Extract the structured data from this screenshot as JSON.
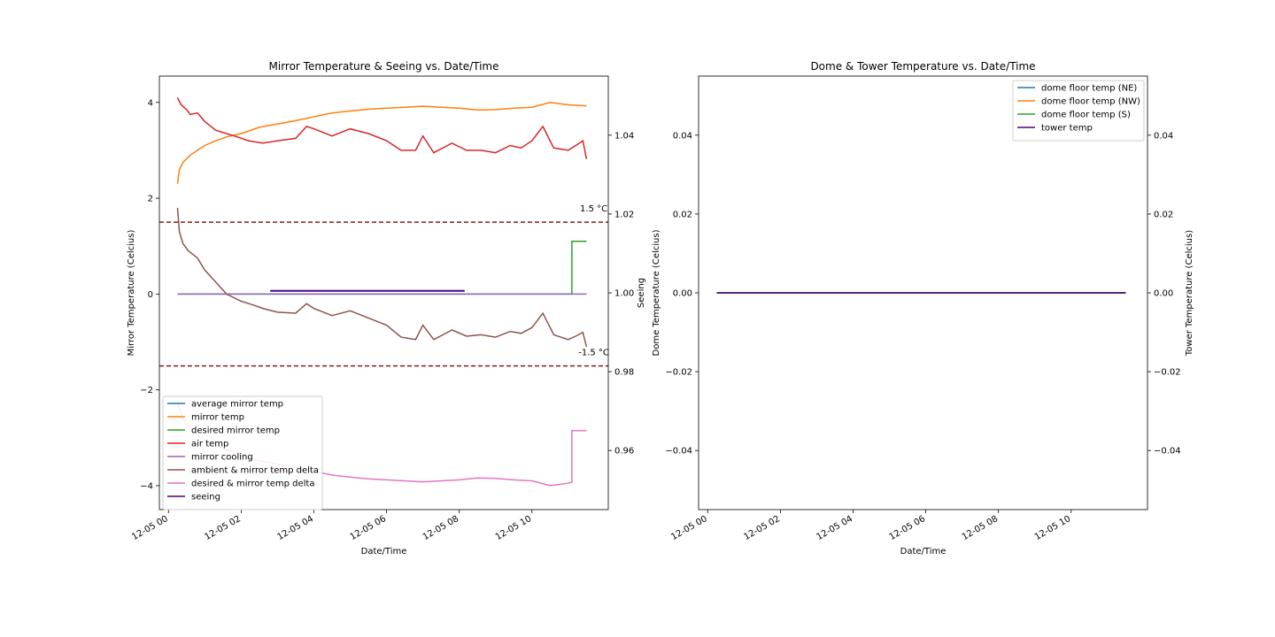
{
  "chart_data": [
    {
      "type": "line",
      "title": "Mirror Temperature & Seeing vs. Date/Time",
      "xlabel": "Date/Time",
      "ylabel": "Mirror Temperature (Celcius)",
      "y2label": "Seeing",
      "xlim": [
        -0.25,
        12.1
      ],
      "ylim": [
        -4.5,
        4.55
      ],
      "y2lim": [
        0.945,
        1.055
      ],
      "x_tick_values": [
        0,
        2,
        4,
        6,
        8,
        10
      ],
      "x_tick_labels": [
        "12-05 00",
        "12-05 02",
        "12-05 04",
        "12-05 06",
        "12-05 08",
        "12-05 10"
      ],
      "y_tick_values": [
        -4,
        -2,
        0,
        2,
        4
      ],
      "y_tick_labels": [
        "−4",
        "−2",
        "0",
        "2",
        "4"
      ],
      "y2_tick_values": [
        0.96,
        0.98,
        1.0,
        1.02,
        1.04
      ],
      "y2_tick_labels": [
        "0.96",
        "0.98",
        "1.00",
        "1.02",
        "1.04"
      ],
      "reference_lines": [
        {
          "y": 1.5,
          "label": "1.5 °C",
          "label_x": 11.7,
          "label_y": 1.8,
          "color": "#8b1a1a"
        },
        {
          "y": -1.5,
          "label": "-1.5 °C",
          "label_x": 11.7,
          "label_y": -1.2,
          "color": "#8b1a1a"
        }
      ],
      "legend_position": "lower-left",
      "series": [
        {
          "name": "average mirror temp",
          "color": "#1f77b4",
          "x": [],
          "y": []
        },
        {
          "name": "mirror temp",
          "color": "#ff7f0e",
          "x": [
            0.25,
            0.3,
            0.4,
            0.6,
            0.8,
            1.0,
            1.3,
            1.6,
            2.0,
            2.5,
            3.0,
            3.5,
            4.0,
            4.5,
            5.0,
            5.5,
            6.0,
            6.5,
            7.0,
            7.5,
            8.0,
            8.5,
            9.0,
            9.5,
            10.0,
            10.5,
            11.0,
            11.5
          ],
          "y": [
            2.3,
            2.6,
            2.75,
            2.9,
            3.0,
            3.1,
            3.2,
            3.28,
            3.35,
            3.48,
            3.55,
            3.62,
            3.7,
            3.78,
            3.82,
            3.86,
            3.88,
            3.9,
            3.92,
            3.9,
            3.88,
            3.84,
            3.85,
            3.88,
            3.9,
            4.0,
            3.95,
            3.93
          ]
        },
        {
          "name": "desired mirror temp",
          "color": "#2ca02c",
          "x": [
            0.25,
            11.1,
            11.1,
            11.5
          ],
          "y": [
            0.0,
            0.0,
            1.1,
            1.1
          ]
        },
        {
          "name": "air temp",
          "color": "#d62728",
          "x": [
            0.25,
            0.35,
            0.5,
            0.6,
            0.8,
            1.0,
            1.3,
            1.6,
            1.9,
            2.2,
            2.6,
            3.0,
            3.5,
            3.8,
            4.0,
            4.5,
            5.0,
            5.5,
            6.0,
            6.4,
            6.8,
            7.0,
            7.3,
            7.8,
            8.2,
            8.6,
            9.0,
            9.4,
            9.7,
            10.0,
            10.3,
            10.6,
            11.0,
            11.2,
            11.4,
            11.5
          ],
          "y": [
            4.1,
            3.95,
            3.85,
            3.75,
            3.78,
            3.6,
            3.42,
            3.35,
            3.28,
            3.2,
            3.15,
            3.2,
            3.25,
            3.5,
            3.45,
            3.3,
            3.45,
            3.35,
            3.2,
            3.0,
            3.0,
            3.3,
            2.95,
            3.15,
            3.0,
            3.0,
            2.95,
            3.1,
            3.05,
            3.2,
            3.5,
            3.05,
            3.0,
            3.1,
            3.2,
            2.82
          ]
        },
        {
          "name": "mirror cooling",
          "color": "#9467bd",
          "x": [
            0.25,
            11.5
          ],
          "y": [
            0.0,
            0.0
          ]
        },
        {
          "name": "ambient & mirror temp delta",
          "color": "#8c564b",
          "x": [
            0.25,
            0.3,
            0.4,
            0.55,
            0.8,
            1.0,
            1.3,
            1.6,
            2.0,
            2.3,
            2.6,
            3.0,
            3.5,
            3.8,
            4.0,
            4.5,
            5.0,
            5.5,
            6.0,
            6.4,
            6.8,
            7.0,
            7.3,
            7.8,
            8.2,
            8.6,
            9.0,
            9.4,
            9.7,
            10.0,
            10.3,
            10.6,
            11.0,
            11.2,
            11.4,
            11.5
          ],
          "y": [
            1.8,
            1.3,
            1.05,
            0.9,
            0.75,
            0.5,
            0.25,
            0.0,
            -0.15,
            -0.22,
            -0.3,
            -0.38,
            -0.4,
            -0.2,
            -0.3,
            -0.45,
            -0.35,
            -0.5,
            -0.65,
            -0.9,
            -0.95,
            -0.65,
            -0.95,
            -0.75,
            -0.88,
            -0.85,
            -0.9,
            -0.78,
            -0.82,
            -0.7,
            -0.4,
            -0.85,
            -0.95,
            -0.88,
            -0.8,
            -1.1
          ]
        },
        {
          "name": "desired & mirror temp delta",
          "color": "#e377c2",
          "x": [
            0.25,
            0.4,
            0.6,
            0.8,
            1.0,
            1.3,
            1.6,
            2.0,
            2.5,
            3.0,
            3.5,
            4.0,
            4.5,
            5.0,
            5.5,
            6.0,
            6.5,
            7.0,
            7.5,
            8.0,
            8.5,
            9.0,
            9.5,
            10.0,
            10.5,
            11.0,
            11.1,
            11.1,
            11.5
          ],
          "y": [
            -2.3,
            -2.6,
            -2.8,
            -2.95,
            -3.05,
            -3.15,
            -3.25,
            -3.35,
            -3.48,
            -3.55,
            -3.62,
            -3.7,
            -3.78,
            -3.82,
            -3.86,
            -3.88,
            -3.9,
            -3.92,
            -3.9,
            -3.88,
            -3.84,
            -3.85,
            -3.88,
            -3.9,
            -4.0,
            -3.95,
            -3.93,
            -2.85,
            -2.85
          ]
        },
        {
          "name": "seeing",
          "color": "#4b0082",
          "axis": "y2",
          "x": [
            2.8,
            8.15
          ],
          "y": [
            1.0005,
            1.0005
          ]
        }
      ]
    },
    {
      "type": "line",
      "title": "Dome & Tower Temperature vs. Date/Time",
      "xlabel": "Date/Time",
      "ylabel": "Dome Temperature (Celcius)",
      "y2label": "Tower Temperature (Celcius)",
      "xlim": [
        -0.25,
        12.1
      ],
      "ylim": [
        -0.055,
        0.055
      ],
      "y2lim": [
        -0.055,
        0.055
      ],
      "x_tick_values": [
        0,
        2,
        4,
        6,
        8,
        10
      ],
      "x_tick_labels": [
        "12-05 00",
        "12-05 02",
        "12-05 04",
        "12-05 06",
        "12-05 08",
        "12-05 10"
      ],
      "y_tick_values": [
        -0.04,
        -0.02,
        0.0,
        0.02,
        0.04
      ],
      "y_tick_labels": [
        "−0.04",
        "−0.02",
        "0.00",
        "0.02",
        "0.04"
      ],
      "y2_tick_values": [
        -0.04,
        -0.02,
        0.0,
        0.02,
        0.04
      ],
      "y2_tick_labels": [
        "−0.04",
        "−0.02",
        "0.00",
        "0.02",
        "0.04"
      ],
      "legend_position": "upper-right",
      "series": [
        {
          "name": "dome floor temp (NE)",
          "color": "#1f77b4",
          "x": [
            0.25,
            11.5
          ],
          "y": [
            0,
            0
          ]
        },
        {
          "name": "dome floor temp (NW)",
          "color": "#ff7f0e",
          "x": [
            0.25,
            11.5
          ],
          "y": [
            0,
            0
          ]
        },
        {
          "name": "dome floor temp (S)",
          "color": "#2ca02c",
          "x": [
            0.25,
            11.5
          ],
          "y": [
            0,
            0
          ]
        },
        {
          "name": "tower temp",
          "color": "#4b0082",
          "axis": "y2",
          "x": [
            0.25,
            11.5
          ],
          "y": [
            0,
            0
          ]
        }
      ]
    }
  ]
}
